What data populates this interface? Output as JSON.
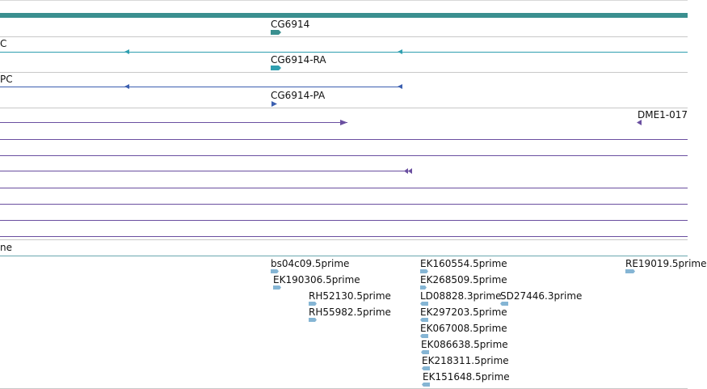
{
  "colors": {
    "gene": "#3a8f8f",
    "transcript": "#2f9fb0",
    "protein": "#3b5fb0",
    "est_track": "#6a4fa0",
    "read": "#85b5d4",
    "divider": "#c8c8c8"
  },
  "tracks": {
    "gene": {
      "label": "CG6914"
    },
    "transcript": {
      "left_label": "C",
      "label": "CG6914-RA"
    },
    "protein": {
      "left_label": "PC",
      "label": "CG6914-PA"
    },
    "alignment": {
      "right_label": "DME1-017"
    },
    "reads": {
      "left_label": "ne",
      "items": [
        "bs04c09.5prime",
        "EK190306.5prime",
        "RH52130.5prime",
        "RH55982.5prime",
        "EK160554.5prime",
        "EK268509.5prime",
        "LD08828.3prime",
        "SD27446.3prime",
        "EK297203.5prime",
        "EK067008.5prime",
        "EK086638.5prime",
        "EK218311.5prime",
        "EK151648.5prime",
        "RE19019.5prime"
      ]
    }
  }
}
